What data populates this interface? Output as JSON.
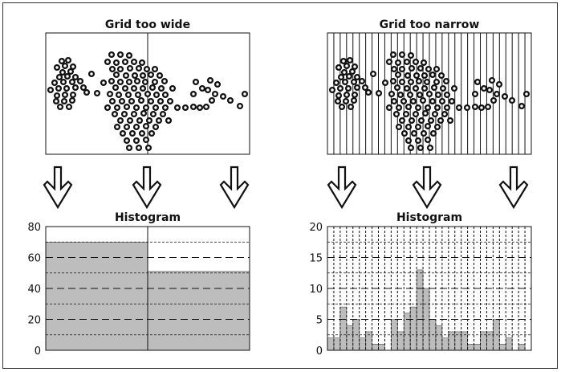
{
  "panels": {
    "wide": {
      "title": "Grid too wide",
      "bins": 2,
      "histogram": {
        "title": "Histogram",
        "ylim": [
          0,
          80
        ],
        "yticks": [
          "0",
          "20",
          "40",
          "60",
          "80"
        ],
        "values": [
          70,
          51
        ],
        "dashed_levels": [
          10,
          20,
          30,
          40,
          50,
          60,
          70
        ]
      }
    },
    "narrow": {
      "title": "Grid too narrow",
      "bins": 32,
      "histogram": {
        "title": "Histogram",
        "ylim": [
          0,
          20
        ],
        "yticks": [
          "0",
          "5",
          "10",
          "15",
          "20"
        ],
        "values": [
          2,
          2,
          7,
          4,
          5,
          2,
          3,
          1,
          1,
          0,
          5,
          3,
          6,
          7,
          13,
          10,
          5,
          4,
          2,
          3,
          3,
          3,
          1,
          1,
          3,
          3,
          5,
          1,
          2,
          0,
          1,
          0
        ],
        "dashed_levels": [
          2.5,
          5,
          7.5,
          10,
          12.5,
          15,
          17.5
        ]
      }
    }
  },
  "chart_data": {
    "type": "scatter",
    "points": [
      [
        77,
        76
      ],
      [
        85,
        75
      ],
      [
        71,
        84
      ],
      [
        81,
        82
      ],
      [
        91,
        83
      ],
      [
        78,
        90
      ],
      [
        88,
        89
      ],
      [
        74,
        96
      ],
      [
        84,
        95
      ],
      [
        94,
        96
      ],
      [
        68,
        103
      ],
      [
        79,
        102
      ],
      [
        90,
        102
      ],
      [
        100,
        101
      ],
      [
        63,
        112
      ],
      [
        73,
        110
      ],
      [
        83,
        110
      ],
      [
        94,
        109
      ],
      [
        104,
        109
      ],
      [
        71,
        119
      ],
      [
        81,
        118
      ],
      [
        91,
        118
      ],
      [
        70,
        126
      ],
      [
        80,
        126
      ],
      [
        90,
        125
      ],
      [
        75,
        133
      ],
      [
        86,
        133
      ],
      [
        114,
        92
      ],
      [
        108,
        115
      ],
      [
        129,
        103
      ],
      [
        121,
        116
      ],
      [
        139,
        68
      ],
      [
        150,
        68
      ],
      [
        161,
        69
      ],
      [
        134,
        77
      ],
      [
        145,
        78
      ],
      [
        156,
        77
      ],
      [
        167,
        77
      ],
      [
        177,
        78
      ],
      [
        140,
        86
      ],
      [
        150,
        86
      ],
      [
        162,
        85
      ],
      [
        173,
        85
      ],
      [
        183,
        86
      ],
      [
        193,
        86
      ],
      [
        145,
        93
      ],
      [
        157,
        94
      ],
      [
        168,
        94
      ],
      [
        178,
        94
      ],
      [
        188,
        93
      ],
      [
        199,
        94
      ],
      [
        139,
        101
      ],
      [
        150,
        102
      ],
      [
        161,
        102
      ],
      [
        171,
        101
      ],
      [
        181,
        102
      ],
      [
        193,
        102
      ],
      [
        205,
        101
      ],
      [
        144,
        109
      ],
      [
        156,
        110
      ],
      [
        167,
        110
      ],
      [
        178,
        110
      ],
      [
        190,
        109
      ],
      [
        201,
        110
      ],
      [
        215,
        110
      ],
      [
        137,
        117
      ],
      [
        148,
        118
      ],
      [
        160,
        118
      ],
      [
        172,
        118
      ],
      [
        184,
        117
      ],
      [
        195,
        118
      ],
      [
        206,
        118
      ],
      [
        140,
        126
      ],
      [
        152,
        126
      ],
      [
        164,
        126
      ],
      [
        176,
        125
      ],
      [
        188,
        126
      ],
      [
        200,
        126
      ],
      [
        212,
        126
      ],
      [
        134,
        134
      ],
      [
        146,
        134
      ],
      [
        158,
        133
      ],
      [
        170,
        134
      ],
      [
        182,
        134
      ],
      [
        194,
        134
      ],
      [
        206,
        134
      ],
      [
        221,
        134
      ],
      [
        231,
        134
      ],
      [
        143,
        142
      ],
      [
        155,
        142
      ],
      [
        167,
        142
      ],
      [
        179,
        141
      ],
      [
        191,
        142
      ],
      [
        203,
        142
      ],
      [
        150,
        150
      ],
      [
        162,
        150
      ],
      [
        174,
        150
      ],
      [
        186,
        150
      ],
      [
        198,
        150
      ],
      [
        210,
        150
      ],
      [
        146,
        158
      ],
      [
        158,
        158
      ],
      [
        170,
        158
      ],
      [
        182,
        157
      ],
      [
        194,
        158
      ],
      [
        153,
        166
      ],
      [
        165,
        166
      ],
      [
        177,
        166
      ],
      [
        189,
        166
      ],
      [
        158,
        175
      ],
      [
        170,
        175
      ],
      [
        182,
        174
      ],
      [
        161,
        184
      ],
      [
        173,
        184
      ],
      [
        185,
        184
      ],
      [
        241,
        133
      ],
      [
        249,
        134
      ],
      [
        257,
        133
      ],
      [
        244,
        102
      ],
      [
        252,
        110
      ],
      [
        241,
        117
      ],
      [
        262,
        100
      ],
      [
        271,
        105
      ],
      [
        259,
        112
      ],
      [
        268,
        117
      ],
      [
        278,
        120
      ],
      [
        287,
        125
      ],
      [
        264,
        125
      ],
      [
        299,
        132
      ],
      [
        305,
        117
      ]
    ]
  },
  "colors": {
    "bar_fill": "#bdbdbd",
    "frame_border": "#333333",
    "ink": "#111111"
  }
}
